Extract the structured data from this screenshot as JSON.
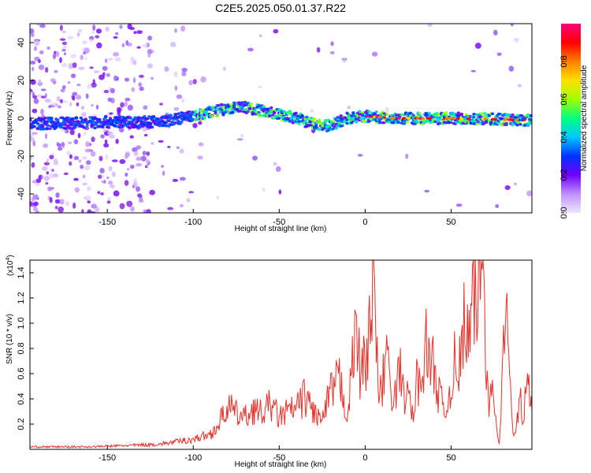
{
  "page": {
    "title": "C2E5.2025.050.01.37.R22"
  },
  "colors": {
    "snr_line": "#e8312a",
    "spectrum_scatter": "#8a2be2",
    "colorbar_stops": [
      "#f0e6ff",
      "#c090ff",
      "#7000ff",
      "#0030ff",
      "#00c8ff",
      "#00ff80",
      "#a0ff00",
      "#ffe000",
      "#ff8000",
      "#ff0000",
      "#ff0080"
    ]
  },
  "chart_data": [
    {
      "type": "heatmap",
      "title": "C2E5.2025.050.01.37.R22",
      "xlabel": "Height of straight line (km)",
      "ylabel": "Frequency (Hz)",
      "xlim": [
        -195,
        97
      ],
      "ylim": [
        -50,
        50
      ],
      "x_ticks": [
        "-150",
        "-100",
        "-50",
        "0",
        "50"
      ],
      "y_ticks": [
        "40",
        "20",
        "0",
        "-20",
        "-40"
      ],
      "x_tick_values": [
        -150,
        -100,
        -50,
        0,
        50
      ],
      "y_tick_values": [
        40,
        20,
        0,
        -20,
        -40
      ],
      "colorbar": {
        "label": "Normalized spectral amplitude",
        "range": [
          0,
          1
        ],
        "ticks": [
          "0.0",
          "0.2",
          "0.4",
          "0.6",
          "0.8"
        ],
        "tick_values": [
          0.0,
          0.2,
          0.4,
          0.6,
          0.8
        ]
      },
      "centerline": {
        "x": [
          -195,
          -150,
          -120,
          -100,
          -90,
          -80,
          -70,
          -60,
          -50,
          -40,
          -30,
          -20,
          -10,
          0,
          20,
          50,
          97
        ],
        "y": [
          -3,
          -2,
          -2,
          1,
          3,
          5,
          6,
          4,
          2,
          0,
          -3,
          -4,
          0,
          1,
          0,
          0,
          -1
        ]
      }
    },
    {
      "type": "line",
      "xlabel": "Height of straight line (km)",
      "ylabel": "SNR (10 * v/v)",
      "y_multiplier": "(x10",
      "y_multiplier_exp": "4",
      "xlim": [
        -195,
        97
      ],
      "ylim": [
        0,
        1.5
      ],
      "x_ticks": [
        "-150",
        "-100",
        "-50",
        "0",
        "50"
      ],
      "y_ticks": [
        "0.2",
        "0.4",
        "0.6",
        "0.8",
        "1.0",
        "1.2",
        "1.4"
      ],
      "x_tick_values": [
        -150,
        -100,
        -50,
        0,
        50
      ],
      "y_tick_values": [
        0.2,
        0.4,
        0.6,
        0.8,
        1.0,
        1.2,
        1.4
      ],
      "series": [
        {
          "x": [
            -195,
            -180,
            -160,
            -140,
            -120,
            -110,
            -100,
            -90,
            -85,
            -80,
            -75,
            -70,
            -65,
            -60,
            -55,
            -50,
            -45,
            -40,
            -35,
            -30,
            -25,
            -20,
            -15,
            -12,
            -10,
            -7,
            -5,
            -3,
            0,
            2,
            4,
            5,
            6,
            8,
            10,
            12,
            14,
            16,
            18,
            20,
            22,
            24,
            26,
            28,
            30,
            32,
            34,
            36,
            38,
            40,
            42,
            44,
            46,
            48,
            50,
            52,
            54,
            56,
            58,
            60,
            62,
            64,
            66,
            68,
            69,
            70,
            72,
            74,
            76,
            78,
            80,
            82,
            84,
            86,
            88,
            90,
            92,
            94,
            97
          ],
          "values": [
            0.02,
            0.02,
            0.02,
            0.03,
            0.04,
            0.06,
            0.08,
            0.12,
            0.2,
            0.35,
            0.28,
            0.25,
            0.32,
            0.28,
            0.36,
            0.25,
            0.3,
            0.32,
            0.42,
            0.3,
            0.22,
            0.45,
            0.55,
            0.38,
            0.3,
            0.72,
            1.02,
            0.6,
            0.7,
            0.9,
            1.2,
            1.5,
            0.85,
            0.5,
            0.42,
            0.95,
            0.55,
            0.3,
            0.45,
            0.62,
            0.5,
            0.38,
            0.45,
            0.2,
            0.58,
            0.48,
            0.72,
            0.85,
            0.6,
            0.7,
            0.5,
            0.38,
            0.3,
            0.35,
            0.55,
            0.68,
            0.45,
            0.9,
            1.0,
            0.85,
            1.05,
            1.15,
            1.25,
            1.4,
            1.5,
            0.9,
            0.3,
            0.72,
            0.2,
            0.05,
            0.6,
            1.25,
            0.55,
            0.1,
            0.2,
            0.42,
            0.2,
            0.55,
            0.3
          ]
        }
      ]
    }
  ]
}
